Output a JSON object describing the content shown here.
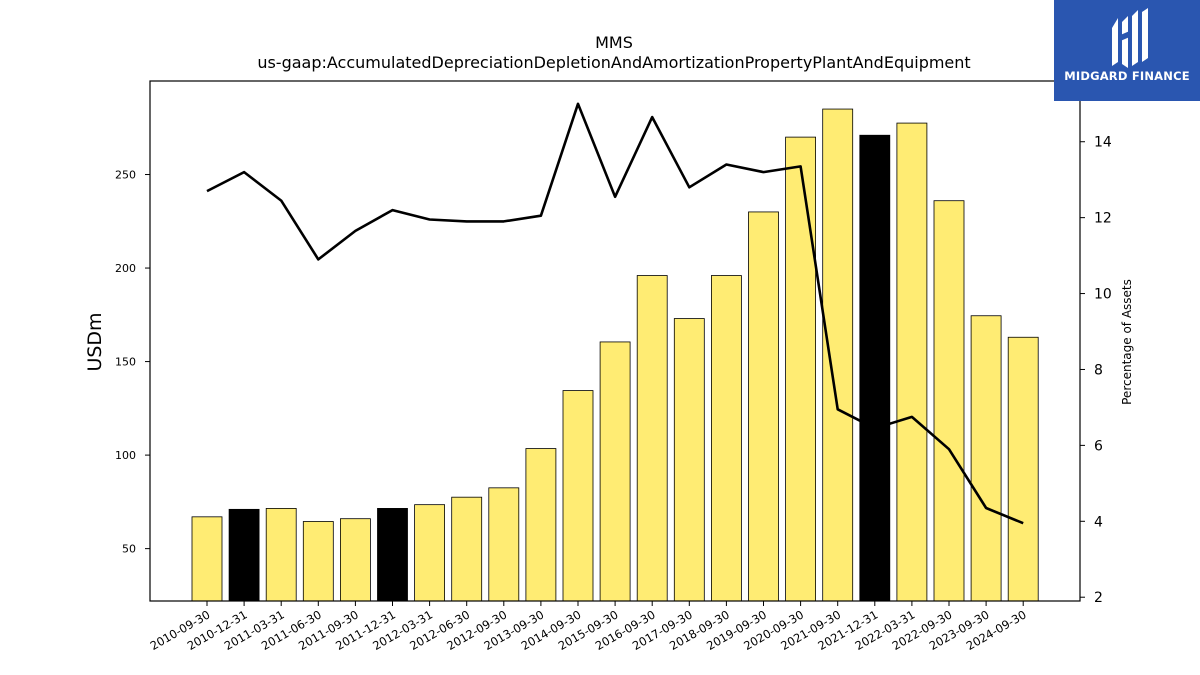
{
  "brand": {
    "name": "MIDGARD FINANCE",
    "background": "#2a56b0"
  },
  "chart_data": {
    "type": "bar",
    "title": "MMS",
    "subtitle": "us-gaap:AccumulatedDepreciationDepletionAndAmortizationPropertyPlantAndEquipment",
    "ylabel": "USDm",
    "y2label": "Percentage of Assets",
    "ylim": [
      22,
      300
    ],
    "y2lim": [
      1.9,
      15.6
    ],
    "yticks": [
      50,
      100,
      150,
      200,
      250
    ],
    "y2ticks": [
      2,
      4,
      6,
      8,
      10,
      12,
      14
    ],
    "categories": [
      "2010-09-30",
      "2010-12-31",
      "2011-03-31",
      "2011-06-30",
      "2011-09-30",
      "2011-12-31",
      "2012-03-31",
      "2012-06-30",
      "2012-09-30",
      "2013-09-30",
      "2014-09-30",
      "2015-09-30",
      "2016-09-30",
      "2017-09-30",
      "2018-09-30",
      "2019-09-30",
      "2020-09-30",
      "2021-09-30",
      "2021-12-31",
      "2022-03-31",
      "2022-09-30",
      "2023-09-30",
      "2024-09-30"
    ],
    "series": [
      {
        "type": "bar",
        "axis": "left",
        "values": [
          67,
          71,
          71.5,
          64.5,
          66,
          71.5,
          73.5,
          77.5,
          82.5,
          103.5,
          134.5,
          160.5,
          196,
          173,
          196,
          230,
          270,
          285,
          271,
          277.5,
          236,
          174.5,
          163
        ]
      },
      {
        "type": "line",
        "axis": "right",
        "values": [
          12.7,
          13.2,
          12.45,
          10.9,
          11.65,
          12.2,
          11.95,
          11.9,
          11.9,
          12.05,
          15.0,
          12.55,
          14.65,
          12.8,
          13.4,
          13.2,
          13.35,
          6.95,
          6.45,
          6.75,
          5.9,
          4.35,
          3.95
        ]
      }
    ],
    "highlighted_categories": [
      "2010-12-31",
      "2011-12-31",
      "2021-12-31"
    ],
    "colors": {
      "bar": "#ffec73",
      "bar_highlight": "#000000",
      "line": "#000000"
    },
    "grid": false,
    "legend": "none"
  }
}
